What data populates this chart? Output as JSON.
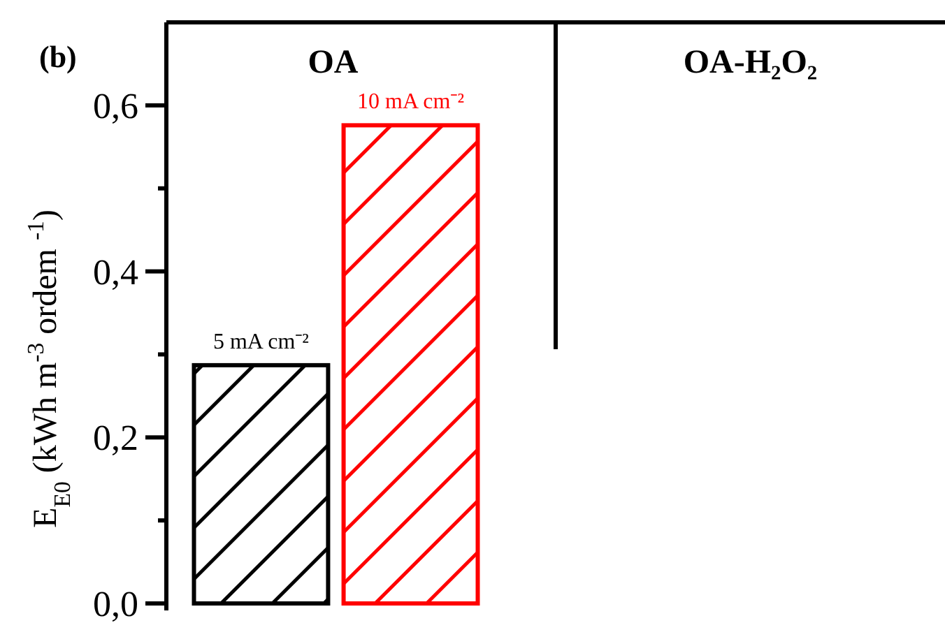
{
  "chart_data": {
    "type": "bar",
    "categories": [
      "OA",
      "OA-H₂O₂"
    ],
    "series": [
      {
        "name": "5 mA cm⁻²",
        "color": "#000000",
        "values": [
          0.287,
          null
        ]
      },
      {
        "name": "10 mA cm⁻²",
        "color": "#ff0000",
        "values": [
          0.576,
          null
        ]
      }
    ],
    "ylabel": "E$_{E0}$ (kWh m$^{-3}$ ordem $^{-1}$)",
    "ylim": [
      0,
      0.7
    ],
    "yticks": [
      {
        "value": 0,
        "label": "0,0"
      },
      {
        "value": 0.1,
        "label": null
      },
      {
        "value": 0.2,
        "label": "0,2"
      },
      {
        "value": 0.3,
        "label": null
      },
      {
        "value": 0.4,
        "label": "0,4"
      },
      {
        "value": 0.5,
        "label": null
      },
      {
        "value": 0.6,
        "label": "0,6"
      }
    ],
    "annotations": [
      "(b)"
    ],
    "grid": false
  }
}
